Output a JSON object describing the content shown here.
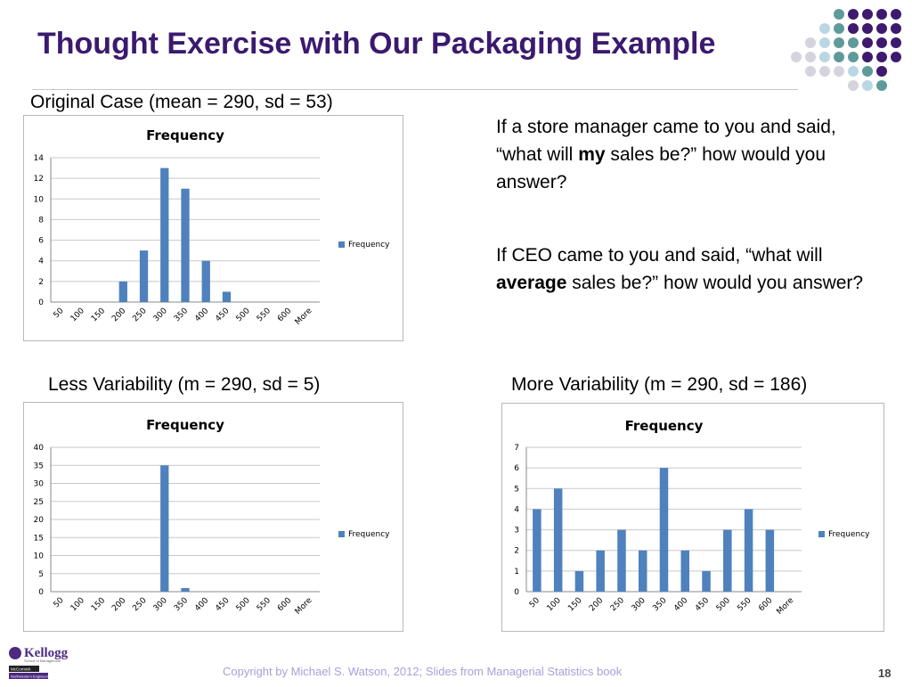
{
  "slide": {
    "title": "Thought Exercise with Our Packaging Example",
    "footer": "Copyright by Michael S. Watson, 2012;  Slides from Managerial Statistics book",
    "page_number": "18",
    "logo_text": "Kellogg",
    "logo_subtext": "School of Management",
    "logo_badge_1": "McCormick",
    "logo_badge_2": "Northwestern Engineering"
  },
  "labels": {
    "original": "Original Case (mean = 290, sd = 53)",
    "less": "Less Variability (m = 290, sd = 5)",
    "more": "More Variability (m = 290, sd = 186)"
  },
  "questions": {
    "q1_pre": "If a store manager came to you and said, “what will ",
    "q1_bold": "my",
    "q1_post": " sales be?”  how would you answer?",
    "q2_pre": "If CEO came to you and said, “what will ",
    "q2_bold": "average",
    "q2_post": " sales be?”  how would you answer?"
  },
  "colors": {
    "title": "#3b1a6e",
    "bar": "#4f81bd",
    "dot_purple": "#3d1a6e",
    "dot_teal": "#5f9a9b",
    "dot_lightblue": "#b9d7e3",
    "dot_gray": "#d5d3de"
  },
  "chart_data": [
    {
      "type": "bar",
      "title": "Frequency",
      "categories": [
        "50",
        "100",
        "150",
        "200",
        "250",
        "300",
        "350",
        "400",
        "450",
        "500",
        "550",
        "600",
        "More"
      ],
      "series": [
        {
          "name": "Frequency",
          "values": [
            0,
            0,
            0,
            2,
            5,
            13,
            11,
            4,
            1,
            0,
            0,
            0,
            0
          ]
        }
      ],
      "ylim": [
        0,
        14
      ],
      "yticks": [
        0,
        2,
        4,
        6,
        8,
        10,
        12,
        14
      ],
      "grid": true,
      "legend": "right"
    },
    {
      "type": "bar",
      "title": "Frequency",
      "categories": [
        "50",
        "100",
        "150",
        "200",
        "250",
        "300",
        "350",
        "400",
        "450",
        "500",
        "550",
        "600",
        "More"
      ],
      "series": [
        {
          "name": "Frequency",
          "values": [
            0,
            0,
            0,
            0,
            0,
            35,
            1,
            0,
            0,
            0,
            0,
            0,
            0
          ]
        }
      ],
      "ylim": [
        0,
        40
      ],
      "yticks": [
        0,
        5,
        10,
        15,
        20,
        25,
        30,
        35,
        40
      ],
      "grid": true,
      "legend": "right"
    },
    {
      "type": "bar",
      "title": "Frequency",
      "categories": [
        "50",
        "100",
        "150",
        "200",
        "250",
        "300",
        "350",
        "400",
        "450",
        "500",
        "550",
        "600",
        "More"
      ],
      "series": [
        {
          "name": "Frequency",
          "values": [
            4,
            5,
            1,
            2,
            3,
            2,
            6,
            2,
            1,
            3,
            4,
            3,
            0
          ]
        }
      ],
      "ylim": [
        0,
        7
      ],
      "yticks": [
        0,
        1,
        2,
        3,
        4,
        5,
        6,
        7
      ],
      "grid": true,
      "legend": "right"
    }
  ]
}
